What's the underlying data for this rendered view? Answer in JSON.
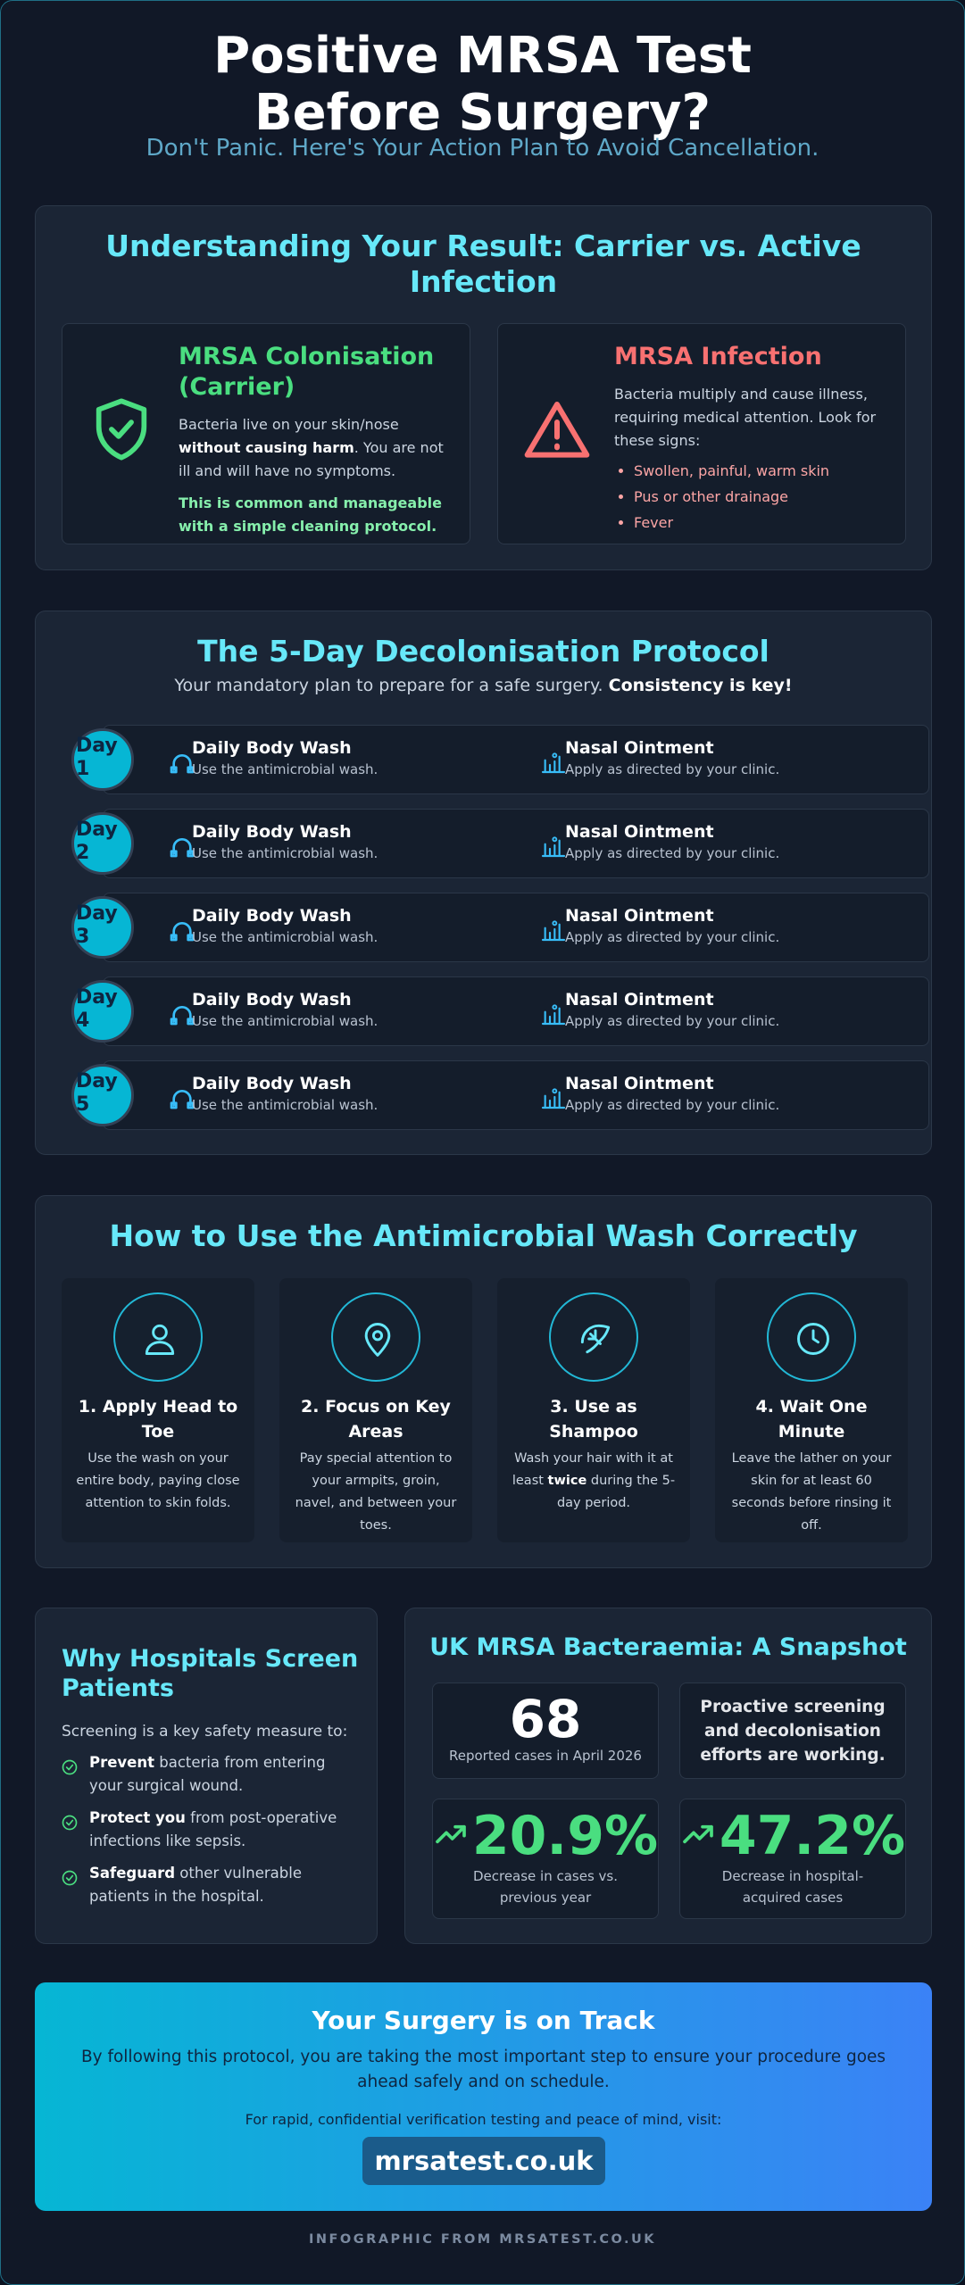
{
  "header": {
    "title": "Positive MRSA Test Before Surgery?",
    "subtitle": "Don't Panic. Here's Your Action Plan to Avoid Cancellation."
  },
  "result": {
    "title": "Understanding Your Result: Carrier vs. Active Infection",
    "carrier": {
      "title": "MRSA Colonisation (Carrier)",
      "text": [
        "Bacteria live on your skin/nose ",
        "without causing harm",
        ". You are not ill and will have no symptoms."
      ],
      "note": "This is common and manageable with a simple cleaning protocol."
    },
    "infection": {
      "title": "MRSA Infection",
      "text": "Bacteria multiply and cause illness, requiring medical attention. Look for these signs:",
      "signs": [
        "Swollen, painful, warm skin",
        "Pus or other drainage",
        "Fever"
      ]
    }
  },
  "protocol": {
    "title": "The 5-Day Decolonisation Protocol",
    "subtitle": [
      "Your mandatory plan to prepare for a safe surgery. ",
      "Consistency is key!"
    ],
    "days": [
      {
        "label": "Day 1",
        "tasks": [
          {
            "title": "Daily Body Wash",
            "text": "Use the antimicrobial wash."
          },
          {
            "title": "Nasal Ointment",
            "text": "Apply as directed by your clinic."
          }
        ]
      },
      {
        "label": "Day 2",
        "tasks": [
          {
            "title": "Daily Body Wash",
            "text": "Use the antimicrobial wash."
          },
          {
            "title": "Nasal Ointment",
            "text": "Apply as directed by your clinic."
          }
        ]
      },
      {
        "label": "Day 3",
        "tasks": [
          {
            "title": "Daily Body Wash",
            "text": "Use the antimicrobial wash."
          },
          {
            "title": "Nasal Ointment",
            "text": "Apply as directed by your clinic."
          }
        ]
      },
      {
        "label": "Day 4",
        "tasks": [
          {
            "title": "Daily Body Wash",
            "text": "Use the antimicrobial wash."
          },
          {
            "title": "Nasal Ointment",
            "text": "Apply as directed by your clinic."
          }
        ]
      },
      {
        "label": "Day 5",
        "tasks": [
          {
            "title": "Daily Body Wash",
            "text": "Use the antimicrobial wash."
          },
          {
            "title": "Nasal Ointment",
            "text": "Apply as directed by your clinic."
          }
        ]
      }
    ]
  },
  "wash": {
    "title": "How to Use the Antimicrobial Wash Correctly",
    "steps": [
      {
        "title": "1. Apply Head to Toe",
        "text": [
          "Use the wash on your entire body, paying close attention to skin folds."
        ]
      },
      {
        "title": "2. Focus on Key Areas",
        "text": [
          "Pay special attention to your armpits, groin, navel, and between your toes."
        ]
      },
      {
        "title": "3. Use as Shampoo",
        "text": [
          "Wash your hair with it at least ",
          "twice",
          " during the 5-day period."
        ]
      },
      {
        "title": "4. Wait One Minute",
        "text": [
          "Leave the lather on your skin for at least 60 seconds before rinsing it off."
        ]
      }
    ]
  },
  "why": {
    "title": "Why Hospitals Screen Patients",
    "intro": "Screening is a key safety measure to:",
    "items": [
      [
        "Prevent",
        " bacteria from entering your surgical wound."
      ],
      [
        "Protect you",
        " from post-operative infections like sepsis."
      ],
      [
        "Safeguard",
        " other vulnerable patients in the hospital."
      ]
    ]
  },
  "stats": {
    "title": "UK MRSA Bacteraemia: A Snapshot",
    "cases": {
      "value": "68",
      "label": "Reported cases in April 2026"
    },
    "note": "Proactive screening and decolonisation efforts are working.",
    "decreases": [
      {
        "value": "20.9%",
        "label": "Decrease in cases vs. previous year"
      },
      {
        "value": "47.2%",
        "label": "Decrease in hospital-acquired cases"
      }
    ]
  },
  "cta": {
    "title": "Your Surgery is on Track",
    "text": "By following this protocol, you are taking the most important step to ensure your procedure goes ahead safely and on schedule.",
    "visit": "For rapid, confidential verification testing and peace of mind, visit:",
    "link": "mrsatest.co.uk"
  },
  "footer": "INFOGRAPHIC FROM MRSATEST.CO.UK"
}
